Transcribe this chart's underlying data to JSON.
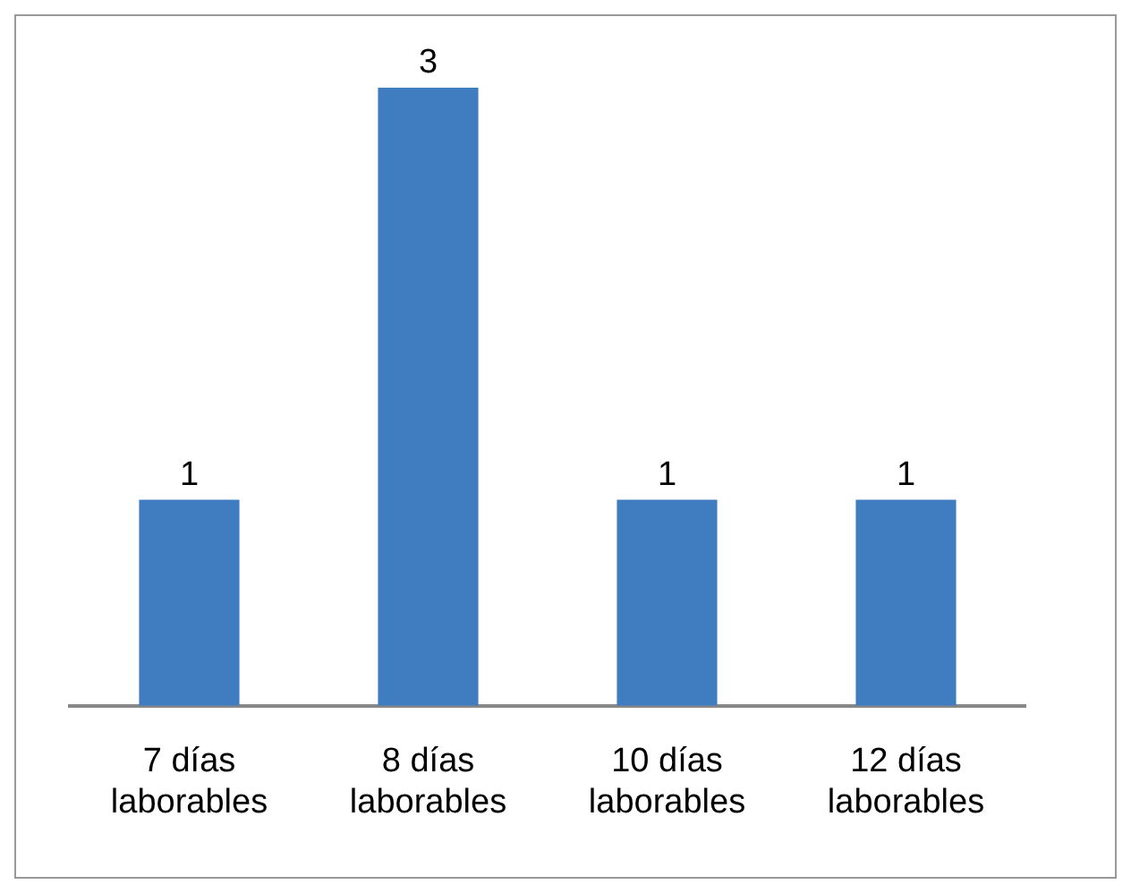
{
  "chart_data": {
    "type": "bar",
    "categories": [
      "7 días laborables",
      "8 días laborables",
      "10 días laborables",
      "12 días laborables"
    ],
    "values": [
      1,
      3,
      1,
      1
    ],
    "color": "#3f7cc0",
    "data_labels": true,
    "grid": false,
    "legend": false
  }
}
